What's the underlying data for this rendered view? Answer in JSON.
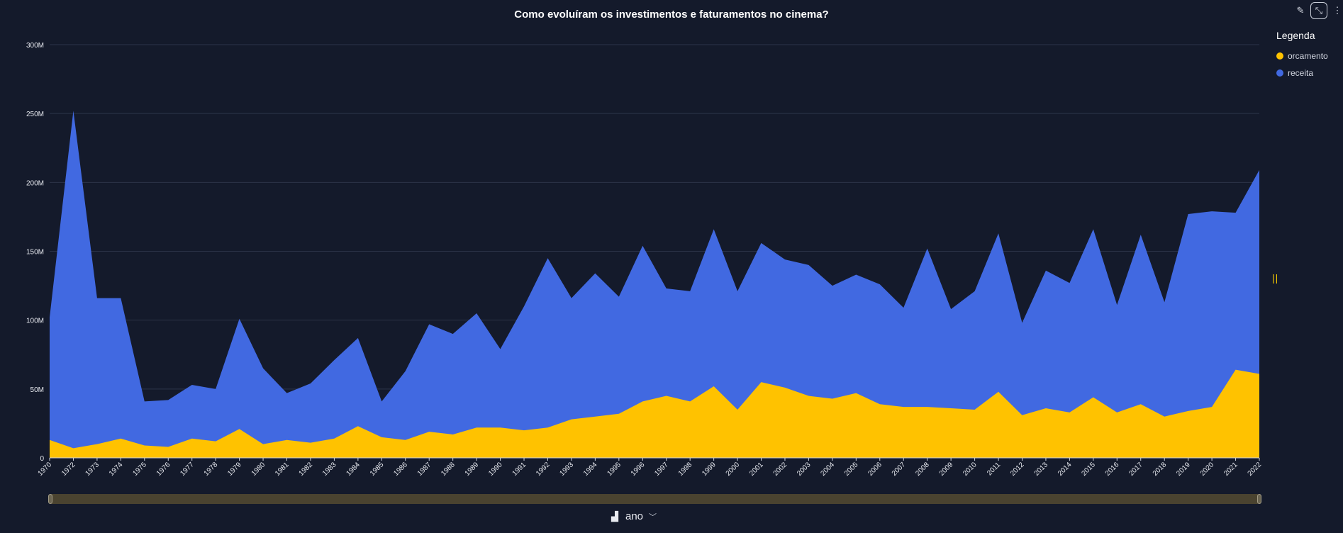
{
  "toolbar": {
    "icons": [
      "edit-icon",
      "collapse-icon",
      "more-vertical-icon"
    ],
    "collapse_glyph": "⤡",
    "more_glyph": "⋮",
    "edit_glyph": "✎"
  },
  "legend": {
    "title": "Legenda",
    "items": [
      {
        "label": "orcamento",
        "color": "#ffc200"
      },
      {
        "label": "receita",
        "color": "#4169e1"
      }
    ]
  },
  "x_selector": {
    "label": "ano",
    "icon": "axis-icon",
    "chevron": "﹀"
  },
  "chart_data": {
    "type": "area",
    "title": "Como evoluíram os investimentos e faturamentos no cinema?",
    "xlabel": "ano",
    "ylabel": "",
    "ylim": [
      0,
      300000000
    ],
    "yticks": [
      0,
      50000000,
      100000000,
      150000000,
      200000000,
      250000000,
      300000000
    ],
    "ytick_labels": [
      "0",
      "50M",
      "100M",
      "150M",
      "200M",
      "250M",
      "300M"
    ],
    "grid": true,
    "legend_position": "right",
    "x": [
      "1970",
      "1972",
      "1973",
      "1974",
      "1975",
      "1976",
      "1977",
      "1978",
      "1979",
      "1980",
      "1981",
      "1982",
      "1983",
      "1984",
      "1985",
      "1986",
      "1987",
      "1988",
      "1989",
      "1990",
      "1991",
      "1992",
      "1993",
      "1994",
      "1995",
      "1996",
      "1997",
      "1998",
      "1999",
      "2000",
      "2001",
      "2002",
      "2003",
      "2004",
      "2005",
      "2006",
      "2007",
      "2008",
      "2009",
      "2010",
      "2011",
      "2012",
      "2013",
      "2014",
      "2015",
      "2016",
      "2017",
      "2018",
      "2019",
      "2020",
      "2021",
      "2022"
    ],
    "series": [
      {
        "name": "receita",
        "color": "#4169e1",
        "values": [
          102000000,
          252000000,
          116000000,
          116000000,
          41000000,
          42000000,
          53000000,
          50000000,
          101000000,
          65000000,
          47000000,
          54000000,
          71000000,
          87000000,
          41000000,
          63000000,
          97000000,
          90000000,
          105000000,
          79000000,
          110000000,
          145000000,
          116000000,
          134000000,
          117000000,
          154000000,
          123000000,
          121000000,
          166000000,
          121000000,
          156000000,
          144000000,
          140000000,
          125000000,
          133000000,
          126000000,
          109000000,
          152000000,
          108000000,
          121000000,
          163000000,
          98000000,
          136000000,
          127000000,
          166000000,
          111000000,
          162000000,
          113000000,
          177000000,
          179000000,
          178000000,
          209000000
        ]
      },
      {
        "name": "orcamento",
        "color": "#ffc200",
        "values": [
          13000000,
          7000000,
          10000000,
          14000000,
          9000000,
          8000000,
          14000000,
          12000000,
          21000000,
          10000000,
          13000000,
          11000000,
          14000000,
          23000000,
          15000000,
          13000000,
          19000000,
          17000000,
          22000000,
          22000000,
          20000000,
          22000000,
          28000000,
          30000000,
          32000000,
          41000000,
          45000000,
          41000000,
          52000000,
          35000000,
          55000000,
          51000000,
          45000000,
          43000000,
          47000000,
          39000000,
          37000000,
          37000000,
          36000000,
          35000000,
          48000000,
          31000000,
          36000000,
          33000000,
          44000000,
          33000000,
          39000000,
          30000000,
          34000000,
          37000000,
          64000000,
          61000000
        ]
      }
    ]
  }
}
